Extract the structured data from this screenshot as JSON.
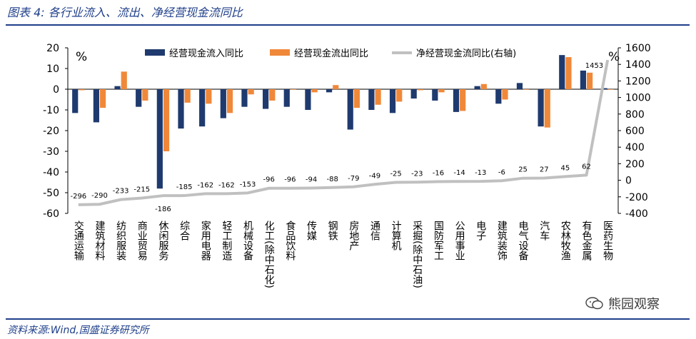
{
  "figure": {
    "title": "图表 4:  各行业流入、流出、净经营现金流同比",
    "source": "资料来源:Wind,国盛证券研究所",
    "watermark": "熊园观察"
  },
  "chart_data": {
    "type": "bar",
    "left_axis_unit": "%",
    "right_axis_unit": "%",
    "categories": [
      "交通运输",
      "建筑材料",
      "纺织服装",
      "商业贸易",
      "休闲服务",
      "综合",
      "家用电器",
      "轻工制造",
      "机械设备",
      "化工(除中石化)",
      "食品饮料",
      "传媒",
      "钢铁",
      "房地产",
      "通信",
      "计算机",
      "采掘(除中石油)",
      "国防军工",
      "公用事业",
      "电子",
      "建筑装饰",
      "电气设备",
      "汽车",
      "农林牧渔",
      "有色金属",
      "医药生物"
    ],
    "series": [
      {
        "name": "经营现金流入同比",
        "kind": "bar",
        "axis": "left",
        "color": "#1f3a6e",
        "values": [
          -11.5,
          -16,
          1.5,
          -8.5,
          -48,
          -19,
          -18,
          -14,
          -8.5,
          -9.5,
          -8.5,
          -10,
          -1.5,
          -19.5,
          -10,
          -11.5,
          -4.5,
          -5.5,
          -11,
          1.5,
          -7,
          3,
          -18,
          16.5,
          9,
          0.5
        ]
      },
      {
        "name": "经营现金流出同比",
        "kind": "bar",
        "axis": "left",
        "color": "#f0883a",
        "values": [
          -0.5,
          -9,
          8.5,
          -5.5,
          -30,
          -6.5,
          -7,
          -11.5,
          -2.5,
          -5.5,
          0,
          -1.5,
          2,
          -9,
          -7.5,
          -6,
          -0.5,
          -1.5,
          -10.5,
          2.5,
          -5,
          0,
          -18.5,
          15.5,
          8,
          0
        ]
      },
      {
        "name": "净经营现金流同比(右轴)",
        "kind": "line",
        "axis": "right",
        "color": "#c0c0c0",
        "values": [
          -296,
          -290,
          -233,
          -215,
          -186,
          -185,
          -162,
          -162,
          -153,
          -96,
          -96,
          -94,
          -88,
          -79,
          -49,
          -25,
          -23,
          -16,
          -14,
          -13,
          -6,
          25,
          27,
          45,
          62,
          1453
        ],
        "labels": [
          "-296",
          "-290",
          "-233",
          "-215",
          "-186",
          "-185",
          "-162",
          "-162",
          "-153",
          "-96",
          "-96",
          "-94",
          "-88",
          "-79",
          "-49",
          "-25",
          "-23",
          "-16",
          "-14",
          "-13",
          "-6",
          "25",
          "27",
          "45",
          "62",
          "1453"
        ]
      }
    ],
    "y_left": {
      "min": -60,
      "max": 20,
      "ticks": [
        "20",
        "10",
        "0",
        "-10",
        "-20",
        "-30",
        "-40",
        "-50",
        "-60"
      ]
    },
    "y_right": {
      "min": -400,
      "max": 1600,
      "ticks": [
        "1600",
        "1400",
        "1200",
        "1000",
        "800",
        "600",
        "400",
        "200",
        "0",
        "-200",
        "-400"
      ]
    },
    "grid": false,
    "legend_position": "top"
  }
}
